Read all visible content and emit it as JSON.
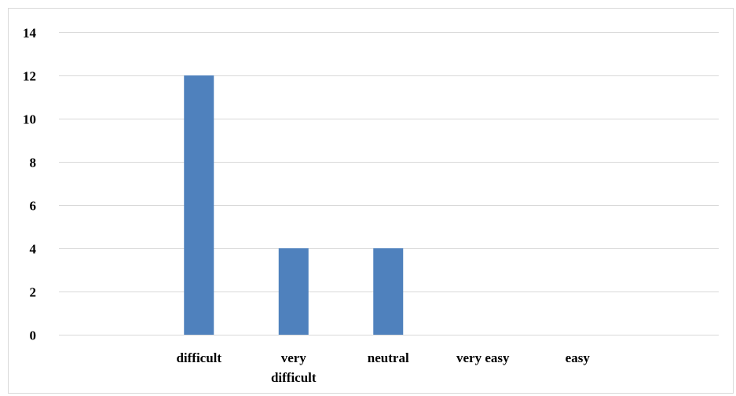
{
  "chart_data": {
    "type": "bar",
    "categories": [
      "difficult",
      "very difficult",
      "neutral",
      "very easy",
      "easy"
    ],
    "category_label_lines": [
      [
        "difficult"
      ],
      [
        "very",
        "difficult"
      ],
      [
        "neutral"
      ],
      [
        "very easy"
      ],
      [
        "easy"
      ]
    ],
    "values": [
      12,
      4,
      4,
      0,
      0
    ],
    "title": "",
    "xlabel": "",
    "ylabel": "",
    "ylim": [
      0,
      14
    ],
    "yticks": [
      0,
      2,
      4,
      6,
      8,
      10,
      12,
      14
    ],
    "grid": true,
    "legend": "none",
    "bar_color": "#4f81bd",
    "grid_color": "#d9d9d9"
  }
}
